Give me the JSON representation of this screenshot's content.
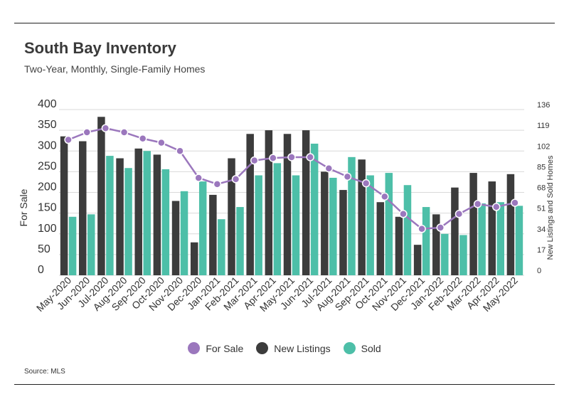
{
  "title": "South Bay Inventory",
  "subtitle": "Two-Year, Monthly, Single-Family Homes",
  "source": "Source:  MLS",
  "colors": {
    "for_sale": "#9b77bd",
    "new_listings": "#3c3c3c",
    "sold": "#4dbfa8",
    "grid": "#d9d9d9"
  },
  "chart_data": {
    "type": "bar",
    "categories": [
      "May-2020",
      "Jun-2020",
      "Jul-2020",
      "Aug-2020",
      "Sep-2020",
      "Oct-2020",
      "Nov-2020",
      "Dec-2020",
      "Jan-2021",
      "Feb-2021",
      "Mar-2021",
      "Apr-2021",
      "May-2021",
      "Jun-2021",
      "Jul-2021",
      "Aug-2021",
      "Sep-2021",
      "Oct-2021",
      "Nov-2021",
      "Dec-2021",
      "Jan-2022",
      "Feb-2022",
      "Mar-2022",
      "Apr-2022",
      "May-2022"
    ],
    "ylabel_left": "For Sale",
    "ylabel_right": "New Listings and Sold Homes",
    "ylim_left": [
      0,
      400
    ],
    "yticks_left": [
      0,
      50,
      100,
      150,
      200,
      250,
      300,
      350,
      400
    ],
    "ylim_right": [
      0,
      136
    ],
    "yticks_right": [
      0,
      17,
      34,
      51,
      68,
      85,
      102,
      119,
      136
    ],
    "grid": true,
    "legend_position": "bottom",
    "series": [
      {
        "name": "For Sale",
        "type": "line",
        "axis": "left",
        "values": [
          327,
          345,
          355,
          345,
          330,
          320,
          300,
          235,
          220,
          232,
          277,
          283,
          285,
          285,
          258,
          238,
          222,
          190,
          148,
          112,
          115,
          148,
          172,
          165,
          175
        ]
      },
      {
        "name": "New Listings",
        "type": "bar",
        "axis": "right",
        "values": [
          114,
          110,
          130,
          96,
          104,
          99,
          61,
          27,
          66,
          96,
          116,
          119,
          116,
          119,
          85,
          70,
          95,
          60,
          48,
          25,
          50,
          72,
          84,
          77,
          83
        ]
      },
      {
        "name": "Sold",
        "type": "bar",
        "axis": "right",
        "values": [
          48,
          50,
          98,
          88,
          102,
          87,
          69,
          77,
          46,
          56,
          82,
          92,
          82,
          108,
          80,
          97,
          82,
          84,
          74,
          56,
          34,
          33,
          59,
          60,
          57
        ]
      }
    ]
  }
}
